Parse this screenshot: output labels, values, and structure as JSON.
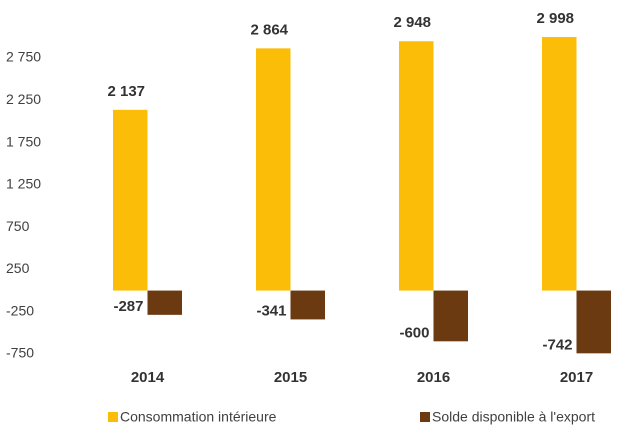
{
  "chart_data": {
    "type": "bar",
    "categories": [
      "2014",
      "2015",
      "2016",
      "2017"
    ],
    "series": [
      {
        "name": "Consommation intérieure",
        "color": "#fbbd08",
        "values": [
          2137,
          2864,
          2948,
          2998
        ],
        "value_labels": [
          "2 137",
          "2 864",
          "2 948",
          "2 998"
        ]
      },
      {
        "name": "Solde disponible à l'export",
        "color": "#6b3a10",
        "values": [
          -287,
          -341,
          -600,
          -742
        ],
        "value_labels": [
          "-287",
          "-341",
          "-600",
          "-742"
        ]
      }
    ],
    "ylim": [
      -750,
      3250
    ],
    "yticks": [
      -750,
      -250,
      250,
      750,
      {
        "value": 1250,
        "label": "1 250"
      },
      {
        "value": 1750,
        "label": "1 750"
      },
      {
        "value": 2250,
        "label": "2 250"
      },
      {
        "value": 2750,
        "label": "2 750"
      }
    ],
    "legend": "bottom"
  }
}
